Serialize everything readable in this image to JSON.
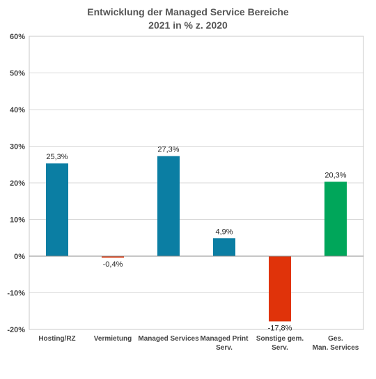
{
  "chart_data": {
    "type": "bar",
    "title_line1": "Entwicklung der Managed Service Bereiche",
    "title_line2": "2021 in % z. 2020",
    "categories": [
      [
        "Hosting/RZ"
      ],
      [
        "Vermietung"
      ],
      [
        "Managed Services"
      ],
      [
        "Managed Print",
        "Serv."
      ],
      [
        "Sonstige gem.",
        "Serv."
      ],
      [
        "Ges.",
        "Man. Services"
      ]
    ],
    "values": [
      25.3,
      -0.4,
      27.3,
      4.9,
      -17.8,
      20.3
    ],
    "value_labels": [
      "25,3%",
      "-0,4%",
      "27,3%",
      "4,9%",
      "-17,8%",
      "20,3%"
    ],
    "bar_colors": [
      "#0b7ea3",
      "#d9360b",
      "#0b7ea3",
      "#0b7ea3",
      "#e0330a",
      "#00a65a"
    ],
    "y_ticks": [
      -20,
      -10,
      0,
      10,
      20,
      30,
      40,
      50,
      60
    ],
    "y_tick_labels": [
      "-20%",
      "-10%",
      "0%",
      "10%",
      "20%",
      "30%",
      "40%",
      "50%",
      "60%"
    ],
    "ylim": [
      -20,
      60
    ],
    "grid": true,
    "xlabel": "",
    "ylabel": ""
  }
}
